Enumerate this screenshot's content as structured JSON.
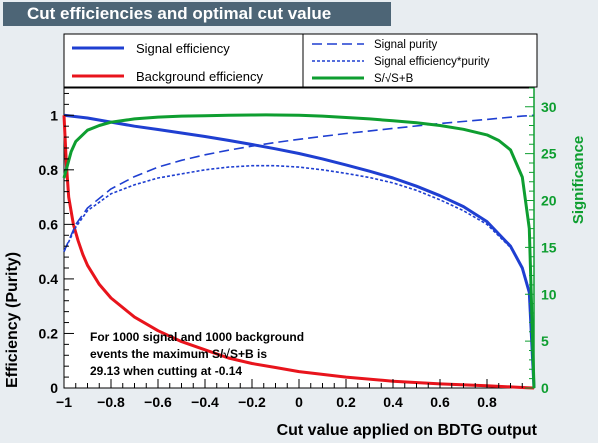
{
  "chart_data": {
    "type": "line",
    "title": "Cut efficiencies and optimal cut value",
    "xlabel": "Cut value applied on BDTG output",
    "ylabel": "Efficiency (Purity)",
    "y2label": "Significance",
    "xlim": [
      -1,
      1
    ],
    "ylim": [
      0,
      1.1
    ],
    "y2lim": [
      0,
      32
    ],
    "xticks": [
      -1,
      -0.8,
      -0.6,
      -0.4,
      -0.2,
      0,
      0.2,
      0.4,
      0.6,
      0.8
    ],
    "xtick_labels": [
      "−1",
      "−0.8",
      "−0.6",
      "−0.4",
      "−0.2",
      "0",
      "0.2",
      "0.4",
      "0.6",
      "0.8"
    ],
    "yticks": [
      0,
      0.2,
      0.4,
      0.6,
      0.8,
      1
    ],
    "ytick_labels": [
      "0",
      "0.2",
      "0.4",
      "0.6",
      "0.8",
      "1"
    ],
    "y2ticks": [
      0,
      5,
      10,
      15,
      20,
      25,
      30
    ],
    "y2tick_labels": [
      "0",
      "5",
      "10",
      "15",
      "20",
      "25",
      "30"
    ],
    "grid": false,
    "legend_position": "top",
    "series": [
      {
        "name": "Signal efficiency",
        "color": "#1f3fd1",
        "style": "solid",
        "axis": "left",
        "x": [
          -1,
          -0.9,
          -0.8,
          -0.7,
          -0.6,
          -0.5,
          -0.4,
          -0.3,
          -0.2,
          -0.1,
          0,
          0.1,
          0.2,
          0.3,
          0.4,
          0.5,
          0.6,
          0.7,
          0.8,
          0.9,
          0.95,
          0.98,
          1.0
        ],
        "y": [
          1.0,
          0.99,
          0.975,
          0.96,
          0.948,
          0.935,
          0.922,
          0.908,
          0.893,
          0.877,
          0.86,
          0.84,
          0.818,
          0.795,
          0.77,
          0.74,
          0.705,
          0.665,
          0.61,
          0.52,
          0.44,
          0.35,
          0.0
        ]
      },
      {
        "name": "Background efficiency",
        "color": "#e8141c",
        "style": "solid",
        "axis": "left",
        "x": [
          -1,
          -0.99,
          -0.98,
          -0.96,
          -0.94,
          -0.92,
          -0.9,
          -0.85,
          -0.8,
          -0.7,
          -0.6,
          -0.5,
          -0.4,
          -0.3,
          -0.2,
          -0.1,
          0,
          0.2,
          0.4,
          0.6,
          0.8,
          0.9,
          0.97,
          1.0
        ],
        "y": [
          1.0,
          0.82,
          0.7,
          0.6,
          0.54,
          0.49,
          0.45,
          0.38,
          0.33,
          0.26,
          0.21,
          0.17,
          0.14,
          0.11,
          0.09,
          0.075,
          0.06,
          0.04,
          0.025,
          0.015,
          0.008,
          0.004,
          0.001,
          0.0
        ]
      },
      {
        "name": "Signal purity",
        "color": "#1f3fd1",
        "style": "dashed",
        "axis": "left",
        "x": [
          -1,
          -0.95,
          -0.9,
          -0.8,
          -0.7,
          -0.6,
          -0.5,
          -0.4,
          -0.3,
          -0.2,
          -0.1,
          0,
          0.2,
          0.4,
          0.6,
          0.8,
          0.9,
          0.95,
          1.0
        ],
        "y": [
          0.5,
          0.6,
          0.66,
          0.73,
          0.775,
          0.81,
          0.835,
          0.855,
          0.872,
          0.887,
          0.9,
          0.912,
          0.933,
          0.952,
          0.97,
          0.985,
          0.993,
          0.997,
          1.0
        ]
      },
      {
        "name": "Signal efficiency*purity",
        "color": "#1f3fd1",
        "style": "dotted",
        "axis": "left",
        "x": [
          -1,
          -0.95,
          -0.9,
          -0.8,
          -0.7,
          -0.6,
          -0.5,
          -0.4,
          -0.3,
          -0.2,
          -0.1,
          0,
          0.1,
          0.2,
          0.3,
          0.4,
          0.5,
          0.6,
          0.7,
          0.8,
          0.9,
          0.95,
          0.98,
          1.0
        ],
        "y": [
          0.5,
          0.59,
          0.65,
          0.712,
          0.745,
          0.77,
          0.785,
          0.8,
          0.81,
          0.815,
          0.815,
          0.81,
          0.8,
          0.787,
          0.772,
          0.752,
          0.725,
          0.69,
          0.65,
          0.6,
          0.515,
          0.44,
          0.35,
          0.0
        ]
      },
      {
        "name": "S/√S+B",
        "color": "#0e9e30",
        "style": "solid",
        "axis": "right",
        "x": [
          -1,
          -0.97,
          -0.95,
          -0.9,
          -0.85,
          -0.8,
          -0.7,
          -0.6,
          -0.5,
          -0.4,
          -0.3,
          -0.2,
          -0.14,
          -0.1,
          0,
          0.1,
          0.2,
          0.3,
          0.4,
          0.5,
          0.6,
          0.7,
          0.8,
          0.85,
          0.9,
          0.95,
          0.98,
          1.0
        ],
        "y": [
          22.4,
          25.2,
          26.3,
          27.5,
          28.0,
          28.35,
          28.7,
          28.9,
          29.0,
          29.05,
          29.1,
          29.12,
          29.13,
          29.12,
          29.1,
          29.0,
          28.85,
          28.7,
          28.5,
          28.3,
          28.0,
          27.6,
          27.0,
          26.4,
          25.4,
          22.5,
          17.0,
          0.0
        ]
      }
    ],
    "annotation_lines": [
      "For 1000 signal and 1000 background",
      "events the maximum S/√S+B is",
      "29.13 when cutting at -0.14"
    ]
  }
}
